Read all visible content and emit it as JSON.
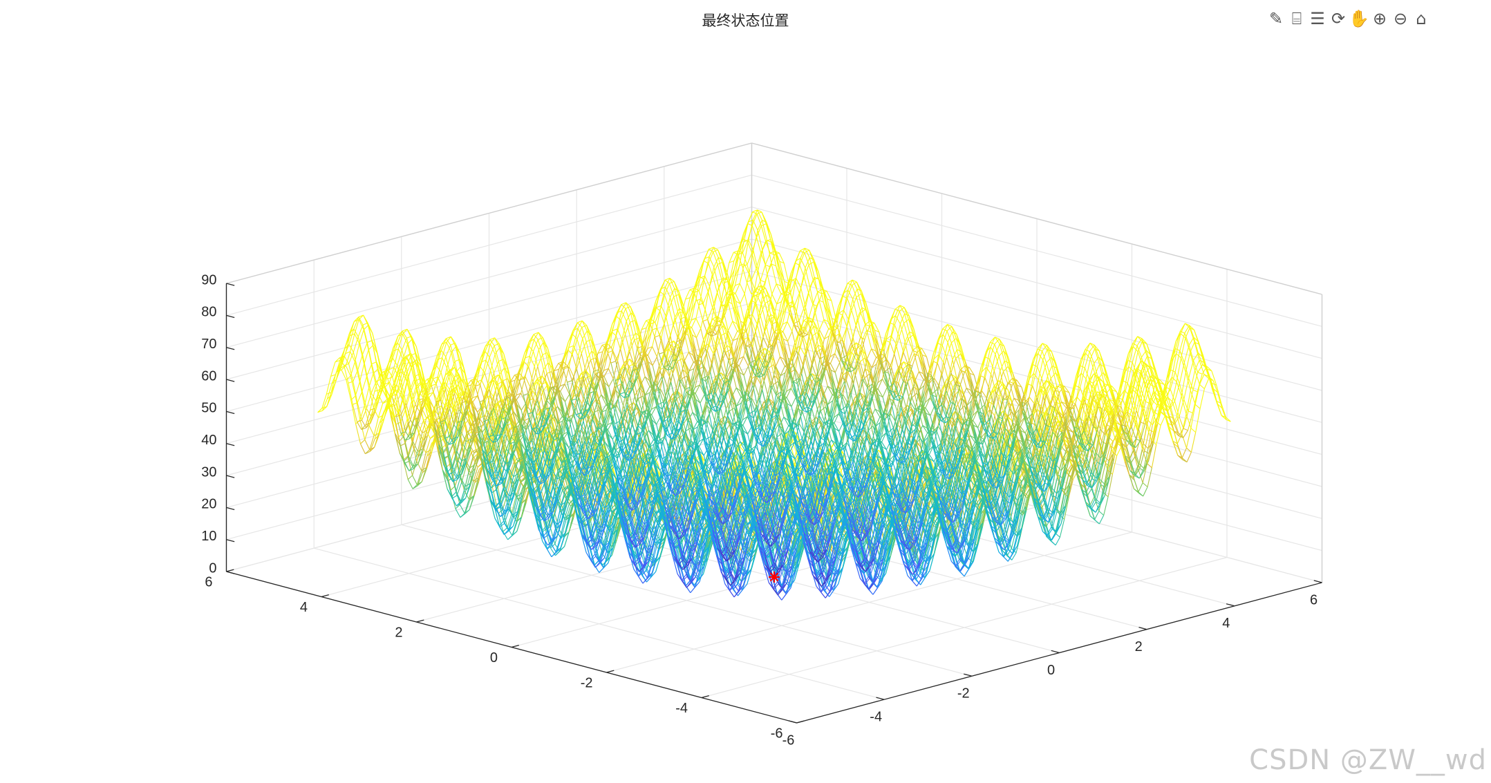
{
  "figure": {
    "title": "最终状态位置"
  },
  "toolbar": {
    "items": [
      {
        "name": "brush-icon",
        "glyph": "✎"
      },
      {
        "name": "data-tips-icon",
        "glyph": "⌸"
      },
      {
        "name": "legend-icon",
        "glyph": "☰"
      },
      {
        "name": "rotate-3d-icon",
        "glyph": "⟳"
      },
      {
        "name": "pan-icon",
        "glyph": "✋"
      },
      {
        "name": "zoom-in-icon",
        "glyph": "⊕"
      },
      {
        "name": "zoom-out-icon",
        "glyph": "⊖"
      },
      {
        "name": "home-icon",
        "glyph": "⌂"
      }
    ]
  },
  "watermark": "CSDN @ZW__wd",
  "chart_data": {
    "type": "surface-mesh",
    "title": "最终状态位置",
    "function": "z = 20 + x^2 - 10cos(2πx) + y^2 - 10cos(2πy)",
    "xlim": [
      -6,
      6
    ],
    "ylim": [
      -6,
      6
    ],
    "zlim": [
      0,
      90
    ],
    "x_ticks": [
      "-6",
      "-4",
      "-2",
      "0",
      "2",
      "4",
      "6"
    ],
    "y_ticks": [
      "-6",
      "-4",
      "-2",
      "0",
      "2",
      "4",
      "6"
    ],
    "z_ticks": [
      "0",
      "10",
      "20",
      "30",
      "40",
      "50",
      "60",
      "70",
      "80",
      "90"
    ],
    "mesh_range": [
      -5,
      5
    ],
    "colormap": "parula",
    "grid": true,
    "final_point": {
      "x": 0,
      "y": 0,
      "z": 0,
      "marker": "*",
      "color": "#ff0000"
    }
  }
}
